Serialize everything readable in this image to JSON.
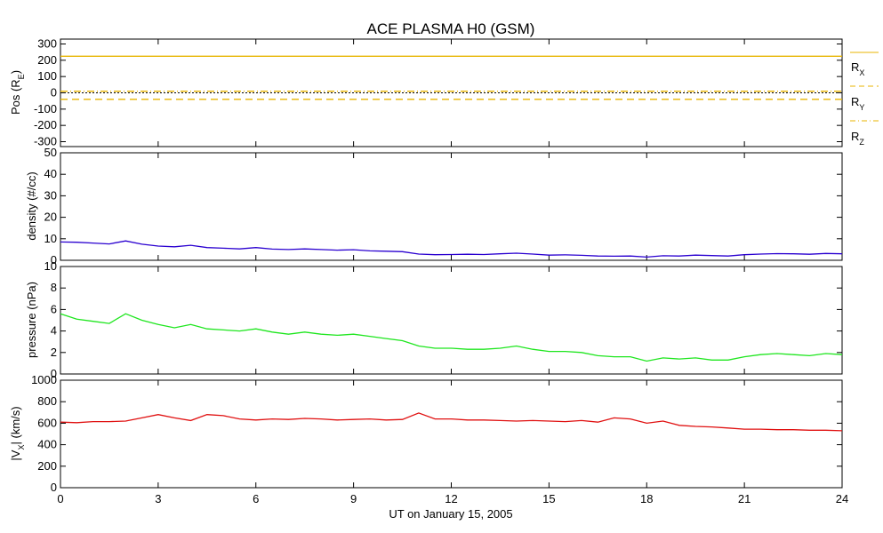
{
  "title": "ACE PLASMA H0 (GSM)",
  "xaxis": {
    "label": "UT on January 15, 2005",
    "ticks": [
      "0",
      "3",
      "6",
      "9",
      "12",
      "15",
      "18",
      "21",
      "24"
    ],
    "range": [
      0,
      24
    ]
  },
  "chart_data": [
    {
      "type": "line",
      "ylabel": "Pos (R_E)",
      "ylim": [
        -330,
        330
      ],
      "yticks": [
        "300",
        "200",
        "100",
        "0",
        "-100",
        "-200",
        "-300"
      ],
      "series": [
        {
          "name": "R_X",
          "color": "#e8b400",
          "style": "solid",
          "x": [
            0,
            24
          ],
          "values": [
            225,
            225
          ]
        },
        {
          "name": "R_Y",
          "color": "#e8b400",
          "style": "dashed",
          "x": [
            0,
            24
          ],
          "values": [
            -40,
            -40
          ]
        },
        {
          "name": "R_Z",
          "color": "#e8b400",
          "style": "dashdot",
          "x": [
            0,
            24
          ],
          "values": [
            10,
            10
          ]
        }
      ],
      "zero_line": true
    },
    {
      "type": "line",
      "ylabel": "density (#/cc)",
      "ylim": [
        0,
        50
      ],
      "yticks": [
        "50",
        "40",
        "30",
        "20",
        "10",
        "0"
      ],
      "series": [
        {
          "color": "#2a00d0",
          "x": [
            0,
            0.5,
            1,
            1.5,
            2,
            2.5,
            3,
            3.5,
            4,
            4.5,
            5,
            5.5,
            6,
            6.5,
            7,
            7.5,
            8,
            8.5,
            9,
            9.5,
            10,
            10.5,
            11,
            11.5,
            12,
            12.5,
            13,
            13.5,
            14,
            14.5,
            15,
            15.5,
            16,
            16.5,
            17,
            17.5,
            18,
            18.5,
            19,
            19.5,
            20,
            20.5,
            21,
            21.5,
            22,
            22.5,
            23,
            23.5,
            24
          ],
          "values": [
            8.5,
            8.4,
            8.0,
            7.6,
            9.0,
            7.5,
            6.6,
            6.3,
            7.0,
            5.9,
            5.6,
            5.3,
            5.9,
            5.2,
            5.0,
            5.3,
            5.0,
            4.7,
            4.9,
            4.4,
            4.2,
            4.0,
            2.9,
            2.6,
            2.7,
            2.8,
            2.7,
            3.0,
            3.3,
            2.9,
            2.4,
            2.5,
            2.3,
            2.0,
            1.9,
            2.0,
            1.5,
            2.1,
            2.0,
            2.4,
            2.2,
            2.0,
            2.6,
            2.9,
            3.1,
            3.0,
            2.8,
            3.2,
            3.0
          ]
        }
      ]
    },
    {
      "type": "line",
      "ylabel": "pressure (nPa)",
      "ylim": [
        0,
        10
      ],
      "yticks": [
        "10",
        "8",
        "6",
        "4",
        "2",
        "0"
      ],
      "series": [
        {
          "color": "#1ee61e",
          "x": [
            0,
            0.5,
            1,
            1.5,
            2,
            2.5,
            3,
            3.5,
            4,
            4.5,
            5,
            5.5,
            6,
            6.5,
            7,
            7.5,
            8,
            8.5,
            9,
            9.5,
            10,
            10.5,
            11,
            11.5,
            12,
            12.5,
            13,
            13.5,
            14,
            14.5,
            15,
            15.5,
            16,
            16.5,
            17,
            17.5,
            18,
            18.5,
            19,
            19.5,
            20,
            20.5,
            21,
            21.5,
            22,
            22.5,
            23,
            23.5,
            24
          ],
          "values": [
            5.6,
            5.1,
            4.9,
            4.7,
            5.6,
            5.0,
            4.6,
            4.3,
            4.6,
            4.2,
            4.1,
            4.0,
            4.2,
            3.9,
            3.7,
            3.9,
            3.7,
            3.6,
            3.7,
            3.5,
            3.3,
            3.1,
            2.6,
            2.4,
            2.4,
            2.3,
            2.3,
            2.4,
            2.6,
            2.3,
            2.1,
            2.1,
            2.0,
            1.7,
            1.6,
            1.6,
            1.2,
            1.5,
            1.4,
            1.5,
            1.3,
            1.3,
            1.6,
            1.8,
            1.9,
            1.8,
            1.7,
            1.9,
            1.8
          ]
        }
      ]
    },
    {
      "type": "line",
      "ylabel": "|V_X| (km/s)",
      "ylim": [
        0,
        1000
      ],
      "yticks": [
        "1000",
        "800",
        "600",
        "400",
        "200",
        "0"
      ],
      "series": [
        {
          "color": "#e01010",
          "x": [
            0,
            0.5,
            1,
            1.5,
            2,
            2.5,
            3,
            3.5,
            4,
            4.5,
            5,
            5.5,
            6,
            6.5,
            7,
            7.5,
            8,
            8.5,
            9,
            9.5,
            10,
            10.5,
            11,
            11.5,
            12,
            12.5,
            13,
            13.5,
            14,
            14.5,
            15,
            15.5,
            16,
            16.5,
            17,
            17.5,
            18,
            18.5,
            19,
            19.5,
            20,
            20.5,
            21,
            21.5,
            22,
            22.5,
            23,
            23.5,
            24
          ],
          "values": [
            610,
            605,
            615,
            615,
            620,
            650,
            680,
            650,
            625,
            680,
            670,
            640,
            630,
            640,
            635,
            645,
            640,
            630,
            635,
            640,
            630,
            635,
            695,
            640,
            640,
            630,
            630,
            625,
            620,
            625,
            620,
            615,
            625,
            610,
            650,
            640,
            600,
            620,
            580,
            570,
            565,
            555,
            545,
            545,
            540,
            540,
            535,
            535,
            530
          ]
        }
      ]
    }
  ],
  "legend": {
    "rx": {
      "base": "R",
      "sub": "X"
    },
    "ry": {
      "base": "R",
      "sub": "Y"
    },
    "rz": {
      "base": "R",
      "sub": "Z"
    }
  },
  "colors": {
    "axis": "#000000",
    "position": "#e8b400",
    "density": "#2a00d0",
    "pressure": "#1ee61e",
    "velocity": "#e01010"
  }
}
